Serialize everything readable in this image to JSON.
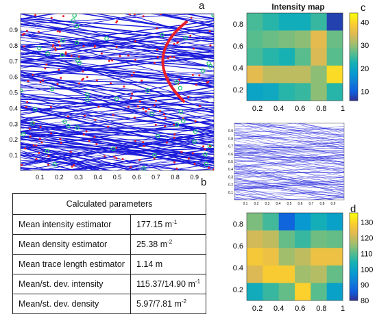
{
  "panels": {
    "a": {
      "letter": "a",
      "yticks": [
        "0.9",
        "0.8",
        "0.7",
        "0.6",
        "0.5",
        "0.4",
        "0.3",
        "0.2",
        "0.1"
      ],
      "xticks": [
        "0.1",
        "0.2",
        "0.3",
        "0.4",
        "0.5",
        "0.6",
        "0.7",
        "0.8",
        "0.9"
      ]
    },
    "b": {
      "letter": "b"
    },
    "c": {
      "letter": "c"
    },
    "d": {
      "letter": "d"
    }
  },
  "table": {
    "title": "Calculated parameters",
    "rows": [
      {
        "label": "Mean intensity estimator",
        "value": "177.15 m",
        "sup": "-1"
      },
      {
        "label": "Mean density estimator",
        "value": "25.38 m",
        "sup": "-2"
      },
      {
        "label": "Mean trace length estimator",
        "value": "1.14 m",
        "sup": ""
      },
      {
        "label": "Mean/st. dev. intensity",
        "value": "115.37/14.90 m",
        "sup": "-1"
      },
      {
        "label": "Mean/st. dev. density",
        "value": "5.97/7.81 m",
        "sup": "-2"
      }
    ]
  },
  "colors": {
    "trace": "#1a1adb",
    "intersect": "#e8202a",
    "endpoint": "#22c27a"
  },
  "chart_data": [
    {
      "type": "heatmap",
      "title": "Intensity map",
      "xticks": [
        "0.2",
        "0.4",
        "0.6",
        "0.8",
        "1"
      ],
      "yticks": [
        "0.8",
        "0.6",
        "0.4",
        "0.2"
      ],
      "colorbar": {
        "min": 6,
        "max": 44,
        "ticks": [
          10,
          20,
          30,
          40
        ]
      },
      "values": [
        [
          26,
          24,
          22,
          22,
          25,
          8
        ],
        [
          27,
          28,
          29,
          30,
          36,
          28
        ],
        [
          26,
          24,
          23,
          27,
          35,
          27
        ],
        [
          36,
          33,
          33,
          33,
          30,
          41
        ],
        [
          20,
          21,
          24,
          25,
          30,
          24
        ]
      ]
    },
    {
      "type": "heatmap",
      "title": "",
      "xticks": [
        "0.2",
        "0.4",
        "0.6",
        "0.8",
        "1"
      ],
      "yticks": [
        "0.8",
        "0.6",
        "0.4",
        "0.2"
      ],
      "colorbar": {
        "min": 80,
        "max": 136,
        "ticks": [
          80,
          90,
          100,
          110,
          120,
          130
        ]
      },
      "values": [
        [
          114,
          109,
          88,
          98,
          104,
          100
        ],
        [
          122,
          120,
          112,
          108,
          113,
          112
        ],
        [
          128,
          126,
          117,
          120,
          126,
          126
        ],
        [
          123,
          129,
          129,
          117,
          119,
          112
        ],
        [
          103,
          108,
          112,
          130,
          111,
          100
        ]
      ]
    }
  ],
  "thumb": {
    "yticks": [
      "0.9",
      "0.8",
      "0.7",
      "0.6",
      "0.5",
      "0.4",
      "0.3",
      "0.2",
      "0.1"
    ],
    "xticks": [
      "0.1",
      "0.2",
      "0.3",
      "0.4",
      "0.5",
      "0.6",
      "0.7",
      "0.8",
      "0.9"
    ]
  }
}
